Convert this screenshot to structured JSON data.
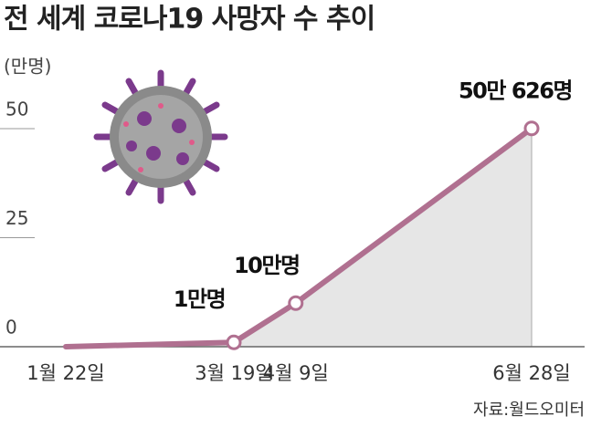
{
  "chart_data": {
    "type": "line",
    "title": "전 세계 코로나19 사망자 수 추이",
    "ylabel": "(만명)",
    "source": "자료:월드오미터",
    "x": [
      "1월 22일",
      "3월 19일",
      "4월 9일",
      "6월 28일"
    ],
    "series": [
      {
        "color": "#b07090",
        "values": [
          0,
          1,
          10,
          50.0626
        ],
        "value_labels": [
          null,
          "1만명",
          "10만명",
          "50만 626명"
        ]
      }
    ],
    "ylim": [
      0,
      52
    ],
    "yticks": [
      0,
      25,
      50
    ]
  }
}
